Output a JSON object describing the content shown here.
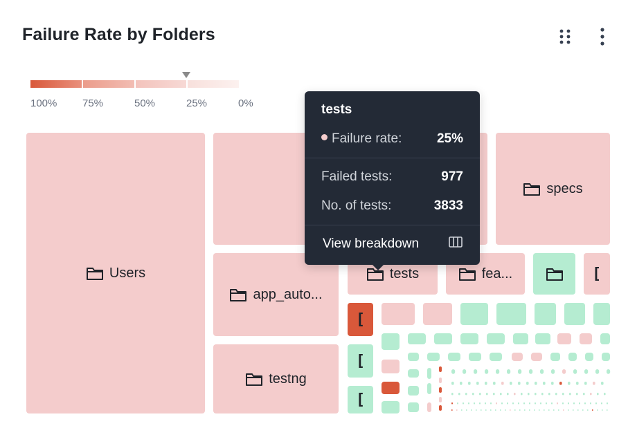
{
  "header": {
    "title": "Failure Rate by Folders"
  },
  "legend": {
    "labels": [
      "100%",
      "75%",
      "50%",
      "25%",
      "0%"
    ],
    "colors": [
      "#d9583a",
      "#e9907d",
      "#f3c3bc",
      "#f8e3e0"
    ],
    "marker_value": "25%"
  },
  "colors": {
    "high_failure": "#d9583a",
    "mid_failure": "#f4cccc",
    "low_failure": "#b5ecd1",
    "tooltip_bg": "#232a36"
  },
  "folders": {
    "users": "Users",
    "app_auto": "app_auto...",
    "testng": "testng",
    "specs": "specs",
    "tests": "tests",
    "fea": "fea..."
  },
  "collapsed_glyph": "[",
  "tooltip": {
    "title": "tests",
    "failure_rate_label": "Failure rate:",
    "failure_rate_value": "25%",
    "failed_tests_label": "Failed tests:",
    "failed_tests_value": "977",
    "total_tests_label": "No. of tests:",
    "total_tests_value": "3833",
    "action_label": "View breakdown"
  },
  "icons": {
    "drag": "drag-handle-icon",
    "menu": "more-vertical-icon",
    "folder": "folder-icon",
    "breakdown": "columns-icon"
  }
}
